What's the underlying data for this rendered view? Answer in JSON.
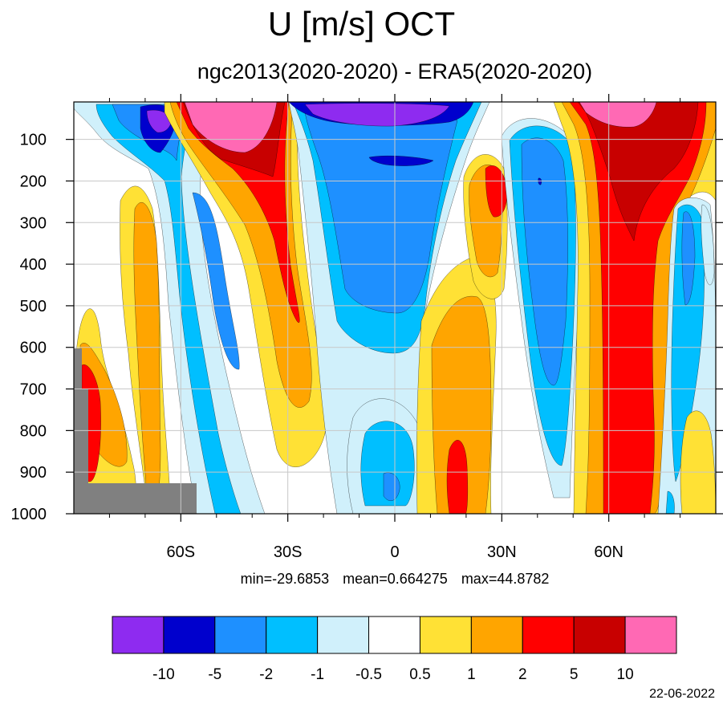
{
  "chart_data": {
    "type": "heatmap",
    "title": "U [m/s] OCT",
    "subtitle": "ngc2013(2020-2020) - ERA5(2020-2020)",
    "xlabel": "",
    "ylabel": "",
    "x_ticks": [
      {
        "value": -60,
        "label": "60S"
      },
      {
        "value": -30,
        "label": "30S"
      },
      {
        "value": 0,
        "label": "0"
      },
      {
        "value": 30,
        "label": "30N"
      },
      {
        "value": 60,
        "label": "60N"
      }
    ],
    "y_ticks": [
      100,
      200,
      300,
      400,
      500,
      600,
      700,
      800,
      900,
      1000
    ],
    "xlim": [
      -90,
      90
    ],
    "ylim": [
      1000,
      10
    ],
    "grid": true,
    "colorbar": {
      "orientation": "horizontal",
      "placement": "bottom",
      "levels": [
        "-10",
        "-5",
        "-2",
        "-1",
        "-0.5",
        "0.5",
        "1",
        "2",
        "5",
        "10"
      ],
      "colors": [
        "#8e2bf0",
        "#0000cd",
        "#1e90ff",
        "#00bfff",
        "#d0f0fb",
        "#ffffff",
        "#ffe135",
        "#ffa500",
        "#ff0000",
        "#c80000",
        "#ff69b4"
      ]
    },
    "regions": [
      {
        "lat": [
          -72,
          -52
        ],
        "p": [
          20,
          140
        ],
        "value": -8,
        "note": "negative core high southern midlatitudes"
      },
      {
        "lat": [
          -66,
          -60
        ],
        "p": [
          30,
          90
        ],
        "value": -12
      },
      {
        "lat": [
          -50,
          -32
        ],
        "p": [
          20,
          120
        ],
        "value": 12
      },
      {
        "lat": [
          -46,
          -28
        ],
        "p": [
          100,
          530
        ],
        "value": 6
      },
      {
        "lat": [
          -55,
          -42
        ],
        "p": [
          250,
          650
        ],
        "value": -3
      },
      {
        "lat": [
          -30,
          20
        ],
        "p": [
          20,
          100
        ],
        "value": -7
      },
      {
        "lat": [
          -20,
          8
        ],
        "p": [
          140,
          520
        ],
        "value": -2.5
      },
      {
        "lat": [
          22,
          30
        ],
        "p": [
          170,
          280
        ],
        "value": 6
      },
      {
        "lat": [
          36,
          48
        ],
        "p": [
          100,
          620
        ],
        "value": -2.5
      },
      {
        "lat": [
          48,
          88
        ],
        "p": [
          20,
          1000
        ],
        "value": 7
      },
      {
        "lat": [
          56,
          74
        ],
        "p": [
          20,
          90
        ],
        "value": 12
      },
      {
        "lat": [
          -84,
          -80
        ],
        "p": [
          650,
          920
        ],
        "value": 6
      },
      {
        "lat": [
          -70,
          -64
        ],
        "p": [
          250,
          900
        ],
        "value": 2
      },
      {
        "lat": [
          12,
          20
        ],
        "p": [
          800,
          1000
        ],
        "value": 6
      }
    ],
    "stats": {
      "min": "-29.6853",
      "mean": "0.664275",
      "max": "44.8782"
    },
    "topography_color": "#808080"
  },
  "labels": {
    "stats_min": "min=-29.6853",
    "stats_mean": "mean=0.664275",
    "stats_max": "max=44.8782",
    "date": "22-06-2022"
  }
}
